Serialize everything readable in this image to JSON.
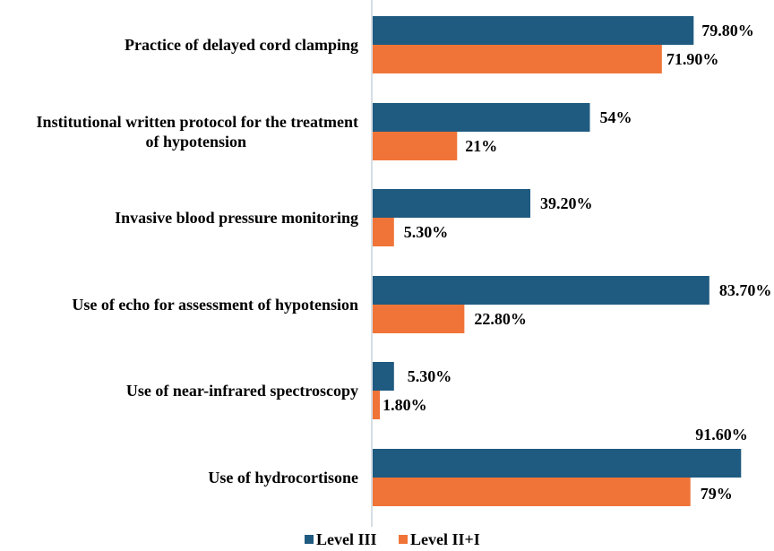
{
  "chart_data": {
    "type": "bar",
    "orientation": "horizontal",
    "title": "",
    "xlabel": "",
    "ylabel": "",
    "xlim": [
      0,
      100
    ],
    "grid": false,
    "legend_position": "bottom",
    "categories": [
      [
        "Practice of delayed cord clamping"
      ],
      [
        "Institutional written protocol for the treatment",
        "of hypotension"
      ],
      [
        "Invasive blood pressure monitoring"
      ],
      [
        "Use of echo for assessment of hypotension"
      ],
      [
        "Use of near-infrared spectroscopy"
      ],
      [
        "Use of hydrocortisone"
      ]
    ],
    "series": [
      {
        "name": "Level III",
        "color": "#1F5A80",
        "values": [
          79.8,
          54,
          39.2,
          83.7,
          5.3,
          91.6
        ],
        "labels": [
          "79.80%",
          "54%",
          "39.20%",
          "83.70%",
          "5.30%",
          "91.60%"
        ]
      },
      {
        "name": "Level II+I",
        "color": "#F07437",
        "values": [
          71.9,
          21,
          5.3,
          22.8,
          1.8,
          79
        ],
        "labels": [
          "71.90%",
          "21%",
          "5.30%",
          "22.80%",
          "1.80%",
          "79%"
        ]
      }
    ]
  }
}
